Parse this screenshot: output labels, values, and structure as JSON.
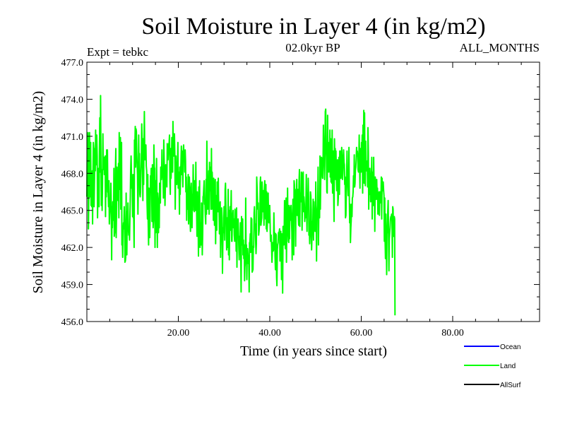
{
  "chart_data": {
    "type": "line",
    "title": "Soil Moisture in Layer 4 (in kg/m2)",
    "subtitle_left": "Expt = tebkc",
    "subtitle_center": "02.0kyr BP",
    "subtitle_right": "ALL_MONTHS",
    "xlabel": "Time (in years since start)",
    "ylabel": "Soil Moisture in Layer 4 (in kg/m2)",
    "xlim": [
      0,
      99
    ],
    "ylim": [
      456.0,
      477.0
    ],
    "x_ticks": [
      20,
      40,
      60,
      80
    ],
    "x_tick_labels": [
      "20.00",
      "40.00",
      "60.00",
      "80.00"
    ],
    "y_ticks": [
      456,
      459,
      462,
      465,
      468,
      471,
      474,
      477
    ],
    "y_tick_labels": [
      "456.0",
      "459.0",
      "462.0",
      "465.0",
      "468.0",
      "471.0",
      "474.0",
      "477.0"
    ],
    "legend": [
      {
        "name": "Ocean",
        "color": "#0000ff"
      },
      {
        "name": "Land",
        "color": "#00ff00"
      },
      {
        "name": "AllSurf",
        "color": "#000000"
      }
    ],
    "series": [
      {
        "name": "Land",
        "color": "#00ff00",
        "x_start": 0.0,
        "x_step": 0.0833,
        "values": [
          466.1,
          469.5,
          470.2,
          471.3,
          463.5,
          465.9,
          468.7,
          471.3,
          466.1,
          470.2,
          470.5,
          465.4,
          466.9,
          465.3,
          468.2,
          463.9,
          467.7,
          470.5,
          470.1,
          465.3,
          467.6,
          470.0,
          468.2,
          471.5,
          468.9,
          468.7,
          471.1,
          469.4,
          464.4,
          466.2,
          467.0,
          468.4,
          465.3,
          470.1,
          472.5,
          468.1,
          474.3,
          468.6,
          465.4,
          468.3,
          465.0,
          467.0,
          471.2,
          468.3,
          469.1,
          469.3,
          467.9,
          468.4,
          469.4,
          464.5,
          469.4,
          466.1,
          469.9,
          467.1,
          469.9,
          466.5,
          466.4,
          465.3,
          467.4,
          463.9,
          464.7,
          465.2,
          465.6,
          467.2,
          465.5,
          461.0,
          465.3,
          463.6,
          465.7,
          464.2,
          464.6,
          468.4,
          462.9,
          463.2,
          463.5,
          468.4,
          470.0,
          462.8,
          465.3,
          468.5,
          466.4,
          466.6,
          465.8,
          468.8,
          464.4,
          471.3,
          467.8,
          466.7,
          470.9,
          465.1,
          470.1,
          470.5,
          462.2,
          462.7,
          461.2,
          463.4,
          464.0,
          463.5,
          465.3,
          464.0,
          460.8,
          460.9,
          461.2,
          466.4,
          463.7,
          461.4,
          464.9,
          463.7,
          465.6,
          463.4,
          463.0,
          463.3,
          462.6,
          464.2,
          466.1,
          468.2,
          469.4,
          468.1,
          466.8,
          467.0,
          464.5,
          467.9,
          464.4,
          464.6,
          462.0,
          470.7,
          470.3,
          471.8,
          468.5,
          471.6,
          471.4,
          469.6,
          468.7,
          467.9,
          464.7,
          466.6,
          471.1,
          468.2,
          469.6,
          466.3,
          466.1,
          466.5,
          468.1,
          469.0,
          472.0,
          470.7,
          469.3,
          465.8,
          470.8,
          467.1,
          470.4,
          473.0,
          469.6,
          469.1,
          470.0,
          470.3,
          468.6,
          468.2,
          465.6,
          464.3,
          467.9,
          464.1,
          462.2,
          466.8,
          465.5,
          462.8,
          464.6,
          467.8,
          467.1,
          468.4,
          467.4,
          464.1,
          468.7,
          466.2,
          463.6,
          464.3,
          470.3,
          468.5,
          468.4,
          462.0,
          467.4,
          463.2,
          465.2,
          469.2,
          466.0,
          462.0,
          466.4,
          465.9,
          463.2,
          465.5,
          463.6,
          467.2,
          466.0,
          465.6,
          468.5,
          468.1,
          467.5,
          469.9,
          467.7,
          468.1,
          467.6,
          466.0,
          470.7,
          468.8,
          467.4,
          465.4,
          466.7,
          468.7,
          468.0,
          468.0,
          466.9,
          470.4,
          469.2,
          469.1,
          469.8,
          470.4,
          470.5,
          471.1,
          467.3,
          466.3,
          470.0,
          467.6,
          468.4,
          470.9,
          468.9,
          468.1,
          472.2,
          470.0,
          469.4,
          469.5,
          471.2,
          469.4,
          465.1,
          468.9,
          469.4,
          467.8,
          467.1,
          468.9,
          468.8,
          470.5,
          466.8,
          468.1,
          468.0,
          464.7,
          468.5,
          466.3,
          468.0,
          468.8,
          470.2,
          467.9,
          469.8,
          468.5,
          466.9,
          469.7,
          470.3,
          469.2,
          469.8,
          468.1,
          469.9,
          469.0,
          466.5,
          467.7,
          464.2,
          466.3,
          465.1,
          466.4,
          467.9,
          463.9,
          465.7,
          467.7,
          466.5,
          464.1,
          463.3,
          466.6,
          467.2,
          465.4,
          463.6,
          466.3,
          465.0,
          468.7,
          466.9,
          466.7,
          464.9,
          467.4,
          467.4,
          465.0,
          468.9,
          465.7,
          465.5,
          462.9,
          466.5,
          464.9,
          464.5,
          461.3,
          466.9,
          462.1,
          467.4,
          462.0,
          464.0,
          462.6,
          462.2,
          465.6,
          464.8,
          461.4,
          463.1,
          466.1,
          466.2,
          466.9,
          467.4,
          465.5,
          465.7,
          464.6,
          463.9,
          467.5,
          464.7,
          470.6,
          467.8,
          465.1,
          465.5,
          466.8,
          468.2,
          464.7,
          468.9,
          466.6,
          468.5,
          467.3,
          465.1,
          470.0,
          465.1,
          468.1,
          467.2,
          467.5,
          464.2,
          467.6,
          466.3,
          463.8,
          466.3,
          467.5,
          462.3,
          466.0,
          466.2,
          463.4,
          467.3,
          466.3,
          464.9,
          467.6,
          465.4,
          465.0,
          463.1,
          465.5,
          465.7,
          461.2,
          462.8,
          463.6,
          465.2,
          464.4,
          459.9,
          462.3,
          463.6,
          463.2,
          465.3,
          464.7,
          462.6,
          466.7,
          467.2,
          465.3,
          463.9,
          461.8,
          464.4,
          462.0,
          463.0,
          466.7,
          461.4,
          465.0,
          461.0,
          464.1,
          465.3,
          463.4,
          465.0,
          466.6,
          462.5,
          462.5,
          464.5,
          464.7,
          465.0,
          463.6,
          464.3,
          463.0,
          462.5,
          465.1,
          464.0,
          463.8,
          461.7,
          465.2,
          460.4,
          463.7,
          463.8,
          464.3,
          463.2,
          461.9,
          461.0,
          462.9,
          461.5,
          464.0,
          461.5,
          458.4,
          464.5,
          462.9,
          462.2,
          464.3,
          461.4,
          462.6,
          461.1,
          462.2,
          459.3,
          460.4,
          460.8,
          466.0,
          461.6,
          462.2,
          459.4,
          461.9,
          461.9,
          461.4,
          460.7,
          461.0,
          458.4,
          462.4,
          462.4,
          463.1,
          461.6,
          464.4,
          462.2,
          464.3,
          460.0,
          460.1,
          460.2,
          462.1,
          462.0,
          464.8,
          465.3,
          463.9,
          463.9,
          462.6,
          461.5,
          462.3,
          467.7,
          466.7,
          465.7,
          465.1,
          465.6,
          463.0,
          463.3,
          463.8,
          463.9,
          467.2,
          467.7,
          463.8,
          464.1,
          464.4,
          467.3,
          466.0,
          464.9,
          466.6,
          465.6,
          463.8,
          466.7,
          467.4,
          466.0,
          464.3,
          467.1,
          463.5,
          466.5,
          463.3,
          464.1,
          465.2,
          466.4,
          464.2,
          464.0,
          464.1,
          465.4,
          464.2,
          462.5,
          462.8,
          463.0,
          462.0,
          460.8,
          461.8,
          462.4,
          461.7,
          461.8,
          464.8,
          463.0,
          463.2,
          461.3,
          460.2,
          463.1,
          463.0,
          459.6,
          458.9,
          461.8,
          462.2,
          462.4,
          463.2,
          463.2,
          463.3,
          463.5,
          460.9,
          462.1,
          463.3,
          462.2,
          459.4,
          463.1,
          462.9,
          458.3,
          463.7,
          463.7,
          462.2,
          463.3,
          465.8,
          462.9,
          461.9,
          464.3,
          466.0,
          460.8,
          464.3,
          464.8,
          466.8,
          463.2,
          462.5,
          462.4,
          465.4,
          462.7,
          465.2,
          464.2,
          465.3,
          465.4,
          464.4,
          463.3,
          461.0,
          464.0,
          465.9,
          465.8,
          461.4,
          467.4,
          467.1,
          465.2,
          465.4,
          462.1,
          466.7,
          466.2,
          467.5,
          464.6,
          466.0,
          466.7,
          464.6,
          463.8,
          467.3,
          468.3,
          463.7,
          466.4,
          466.2,
          465.7,
          468.1,
          468.0,
          463.4,
          465.8,
          467.4,
          468.1,
          464.9,
          466.1,
          465.5,
          464.1,
          464.6,
          464.4,
          465.3,
          467.9,
          465.0,
          463.3,
          466.4,
          465.6,
          467.6,
          466.1,
          463.0,
          463.5,
          462.3,
          463.0,
          466.5,
          466.2,
          465.1,
          461.8,
          463.0,
          464.1,
          463.3,
          465.9,
          462.6,
          465.7,
          464.8,
          463.7,
          463.3,
          463.7,
          467.3,
          464.2,
          460.9,
          464.8,
          464.9,
          465.4,
          468.5,
          462.2,
          465.3,
          465.8,
          464.4,
          469.4,
          465.1,
          467.5,
          467.7,
          469.3,
          469.2,
          468.6,
          467.6,
          468.7,
          471.9,
          470.1,
          470.2,
          467.5,
          469.8,
          473.0,
          473.2,
          470.3,
          469.3,
          466.5,
          466.4,
          472.7,
          468.8,
          468.8,
          468.1,
          470.5,
          469.4,
          471.5,
          467.7,
          470.8,
          467.3,
          468.8,
          467.2,
          471.5,
          466.4,
          466.9,
          469.8,
          466.2,
          464.1,
          470.8,
          469.1,
          470.0,
          467.5,
          469.8,
          467.6,
          466.6,
          467.0,
          469.1,
          465.4,
          466.0,
          468.1,
          469.3,
          466.3,
          469.8,
          469.8,
          467.7,
          467.6,
          468.5,
          470.1,
          469.2,
          467.5,
          468.0,
          469.1,
          469.9,
          468.9,
          468.7,
          467.1,
          467.7,
          464.4,
          464.6,
          466.2,
          467.9,
          469.8,
          467.8,
          467.0,
          466.2,
          466.8,
          470.1,
          466.1,
          464.0,
          465.5,
          462.4,
          463.6,
          464.2,
          465.5,
          464.5,
          466.0,
          466.1,
          466.5,
          467.8,
          466.9,
          469.5,
          466.9,
          467.2,
          468.2,
          468.5,
          469.1,
          470.1,
          469.4,
          469.8,
          469.5,
          468.3,
          468.1,
          469.1,
          471.1,
          468.4,
          466.8,
          470.0,
          469.4,
          468.1,
          470.5,
          469.9,
          471.1,
          466.4,
          471.9,
          467.6,
          473.1,
          467.2,
          472.9,
          468.2,
          467.0,
          470.6,
          468.2,
          468.2,
          468.2,
          469.0,
          466.9,
          471.7,
          469.6,
          465.1,
          467.9,
          466.3,
          468.4,
          467.5,
          465.7,
          466.3,
          467.8,
          469.3,
          464.3,
          468.1,
          467.4,
          465.4,
          469.3,
          466.7,
          466.6,
          463.3,
          467.7,
          467.2,
          465.9,
          465.9,
          467.5,
          466.1,
          466.8,
          464.7,
          466.3,
          466.1,
          466.5,
          464.6,
          466.5,
          465.6,
          466.5,
          465.8,
          467.7,
          464.3,
          467.6,
          466.6,
          466.6,
          467.3,
          466.6,
          466.2,
          462.5,
          466.0,
          462.5,
          461.1,
          464.7,
          463.0,
          459.8,
          463.5,
          463.2,
          465.0,
          465.8,
          462.9,
          460.1,
          462.7,
          463.2,
          463.6,
          464.3,
          464.5,
          464.5,
          464.7,
          464.1,
          461.2,
          465.3,
          465.1,
          462.9,
          464.2,
          464.5,
          464.3,
          456.5
        ]
      }
    ]
  }
}
